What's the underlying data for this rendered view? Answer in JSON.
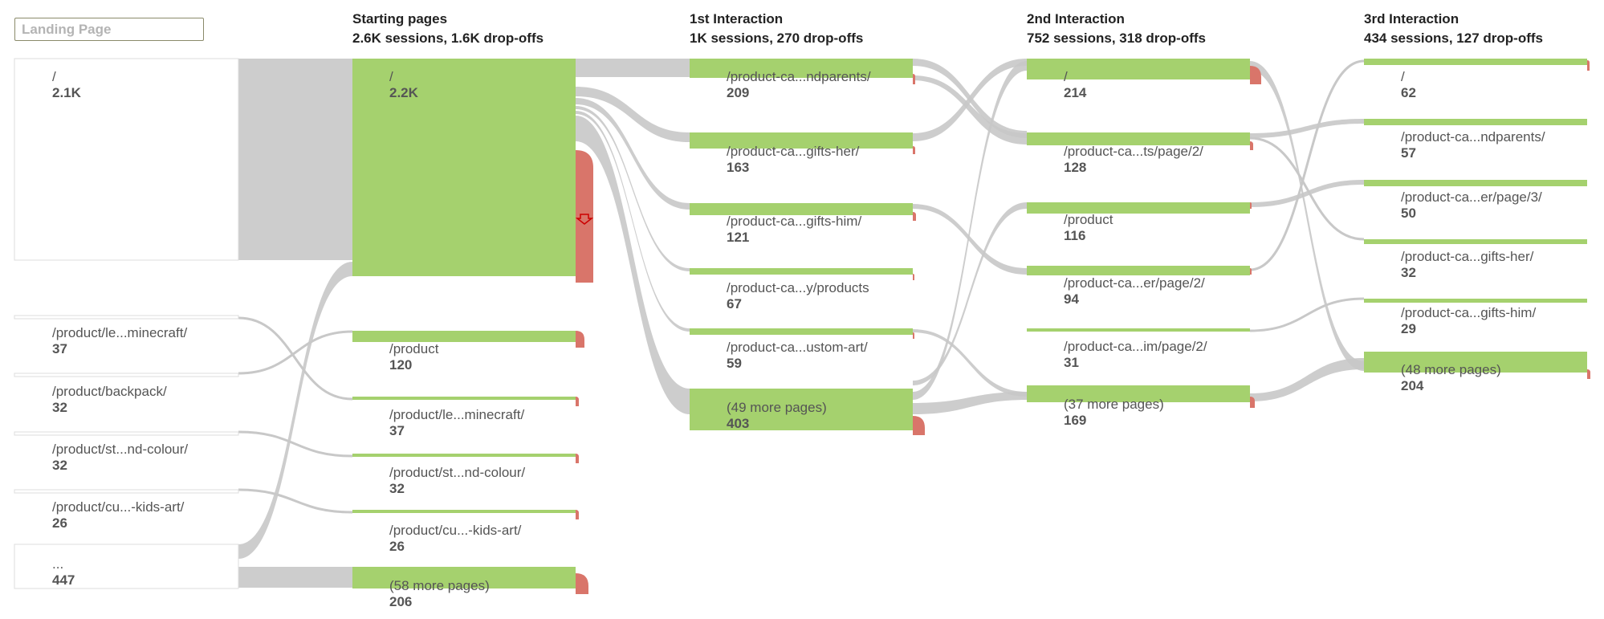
{
  "dimension_selector": {
    "value": "Landing Page"
  },
  "columns": [
    {
      "title": "Starting pages",
      "subtitle": "2.6K sessions, 1.6K drop-offs"
    },
    {
      "title": "1st Interaction",
      "subtitle": "1K sessions, 270 drop-offs"
    },
    {
      "title": "2nd Interaction",
      "subtitle": "752 sessions, 318 drop-offs"
    },
    {
      "title": "3rd Interaction",
      "subtitle": "434 sessions, 127 drop-offs"
    }
  ],
  "landing_pages": [
    {
      "page": "/",
      "sessions": "2.1K"
    },
    {
      "page": "/product/le...minecraft/",
      "sessions": "37"
    },
    {
      "page": "/product/backpack/",
      "sessions": "32"
    },
    {
      "page": "/product/st...nd-colour/",
      "sessions": "32"
    },
    {
      "page": "/product/cu...-kids-art/",
      "sessions": "26"
    },
    {
      "page": "...",
      "sessions": "447"
    }
  ],
  "starting_pages": [
    {
      "page": "/",
      "sessions": "2.2K"
    },
    {
      "page": "/product",
      "sessions": "120"
    },
    {
      "page": "/product/le...minecraft/",
      "sessions": "37"
    },
    {
      "page": "/product/st...nd-colour/",
      "sessions": "32"
    },
    {
      "page": "/product/cu...-kids-art/",
      "sessions": "26"
    },
    {
      "page": "(58 more pages)",
      "sessions": "206"
    }
  ],
  "interaction_1": [
    {
      "page": "/product-ca...ndparents/",
      "sessions": "209"
    },
    {
      "page": "/product-ca...gifts-her/",
      "sessions": "163"
    },
    {
      "page": "/product-ca...gifts-him/",
      "sessions": "121"
    },
    {
      "page": "/product-ca...y/products",
      "sessions": "67"
    },
    {
      "page": "/product-ca...ustom-art/",
      "sessions": "59"
    },
    {
      "page": "(49 more pages)",
      "sessions": "403"
    }
  ],
  "interaction_2": [
    {
      "page": "/",
      "sessions": "214"
    },
    {
      "page": "/product-ca...ts/page/2/",
      "sessions": "128"
    },
    {
      "page": "/product",
      "sessions": "116"
    },
    {
      "page": "/product-ca...er/page/2/",
      "sessions": "94"
    },
    {
      "page": "/product-ca...im/page/2/",
      "sessions": "31"
    },
    {
      "page": "(37 more pages)",
      "sessions": "169"
    }
  ],
  "interaction_3": [
    {
      "page": "/",
      "sessions": "62"
    },
    {
      "page": "/product-ca...ndparents/",
      "sessions": "57"
    },
    {
      "page": "/product-ca...er/page/3/",
      "sessions": "50"
    },
    {
      "page": "/product-ca...gifts-her/",
      "sessions": "32"
    },
    {
      "page": "/product-ca...gifts-him/",
      "sessions": "29"
    },
    {
      "page": "(48 more pages)",
      "sessions": "204"
    }
  ],
  "colors": {
    "node_green": "#a5d16e",
    "flow_gray": "#c8c8c8",
    "dropoff_red": "#d9756a",
    "dropoff_arrow": "#cc0000",
    "landing_node_fill": "#ffffff",
    "landing_node_border": "#dddddd"
  }
}
